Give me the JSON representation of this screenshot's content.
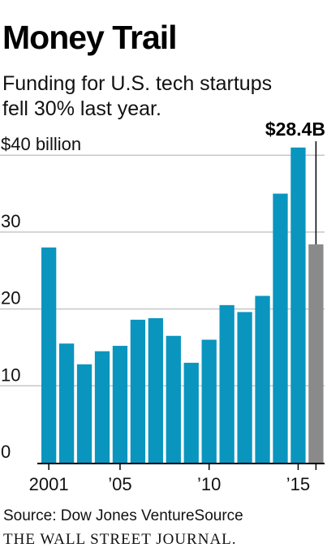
{
  "title": "Money Trail",
  "subtitle_lines": [
    "Funding for U.S. tech startups",
    "fell 30% last year."
  ],
  "source": "Source: Dow Jones VentureSource",
  "publisher": "THE WALL STREET JOURNAL.",
  "colors": {
    "bar": "#0a95bf",
    "highlight_bar": "#8a8a8a",
    "grid": "#c7c7c7",
    "axis": "#000000"
  },
  "chart_data": {
    "type": "bar",
    "title": "Money Trail",
    "subtitle": "Funding for U.S. tech startups fell 30% last year.",
    "categories": [
      "2001",
      "2002",
      "2003",
      "2004",
      "2005",
      "2006",
      "2007",
      "2008",
      "2009",
      "2010",
      "2011",
      "2012",
      "2013",
      "2014",
      "2015",
      "2016"
    ],
    "values": [
      28.0,
      15.5,
      12.8,
      14.5,
      15.2,
      18.6,
      18.8,
      16.5,
      13.0,
      16.0,
      20.5,
      19.6,
      21.7,
      35.0,
      41.0,
      28.4
    ],
    "highlight_index": 15,
    "highlight_label": "$28.4B",
    "ylabel": "$40 billion",
    "ylim": [
      0,
      44
    ],
    "yticks": [
      {
        "value": 0,
        "label": "0"
      },
      {
        "value": 10,
        "label": "10"
      },
      {
        "value": 20,
        "label": "20"
      },
      {
        "value": 30,
        "label": "30"
      },
      {
        "value": 40,
        "label": "$40 billion"
      }
    ],
    "xticks": [
      {
        "index": 0,
        "label": "2001"
      },
      {
        "index": 4,
        "label": "’05"
      },
      {
        "index": 9,
        "label": "’10"
      },
      {
        "index": 14,
        "label": "’15"
      }
    ],
    "grid": true,
    "legend": "none"
  }
}
